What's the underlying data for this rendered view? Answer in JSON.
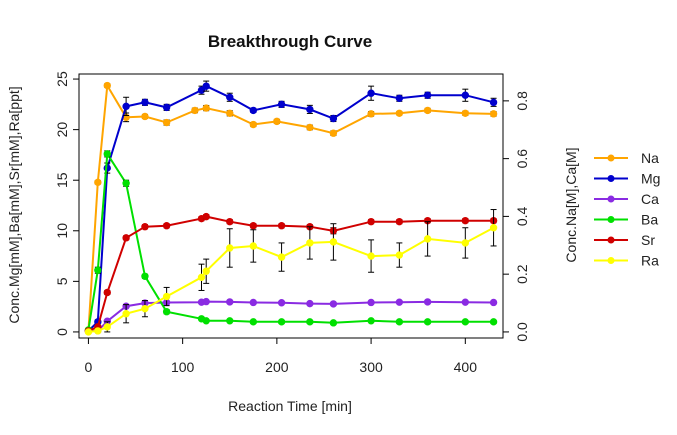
{
  "chart_data": {
    "type": "line",
    "title": "Breakthrough Curve",
    "xlabel": "Reaction Time [min]",
    "ylabel_left": "Conc.Mg[mM],Ba[mM],Sr[mM],Ra[ppt]",
    "ylabel_right": "Conc.Na[M],Ca[M]",
    "xlim": [
      -10,
      440
    ],
    "ylim_left": [
      -0.6,
      25.5
    ],
    "ylim_right": [
      -0.021,
      0.893
    ],
    "xticks": [
      0,
      100,
      200,
      300,
      400
    ],
    "yticks_left": [
      0,
      5,
      10,
      15,
      20,
      25
    ],
    "yticks_right": [
      0.0,
      0.2,
      0.4,
      0.6,
      0.8
    ],
    "yticks_right_labels": [
      "0.0",
      "0.2",
      "0.4",
      "0.6",
      "0.8"
    ],
    "grid": false,
    "legend_position": "right",
    "series": [
      {
        "name": "Na",
        "axis": "right",
        "color": "#FFA500",
        "x": [
          0,
          10,
          20,
          40,
          60,
          83,
          113,
          125,
          150,
          175,
          200,
          235,
          260,
          300,
          330,
          360,
          400,
          430
        ],
        "y": [
          0.002,
          0.518,
          0.853,
          0.743,
          0.746,
          0.725,
          0.767,
          0.775,
          0.757,
          0.718,
          0.729,
          0.708,
          0.688,
          0.755,
          0.757,
          0.767,
          0.757,
          0.755
        ],
        "err": [
          0.002,
          0.006,
          0.006,
          0.015,
          0.007,
          0.009,
          0.008,
          0.009,
          0.009,
          0.007,
          0.007,
          0.008,
          0.008,
          0.008,
          0.006,
          0.007,
          0.007,
          0.008
        ]
      },
      {
        "name": "Mg",
        "axis": "left",
        "color": "#0000CD",
        "x": [
          0,
          10,
          20,
          40,
          60,
          83,
          120,
          125,
          150,
          175,
          205,
          235,
          260,
          300,
          330,
          360,
          400,
          430
        ],
        "y": [
          0.1,
          1.0,
          16.2,
          22.3,
          22.7,
          22.2,
          23.9,
          24.3,
          23.2,
          21.9,
          22.5,
          22.0,
          21.1,
          23.6,
          23.1,
          23.4,
          23.4,
          22.7
        ],
        "err": [
          0.1,
          0.2,
          0.5,
          0.9,
          0.3,
          0.3,
          0.4,
          0.5,
          0.4,
          0.2,
          0.3,
          0.4,
          0.3,
          0.7,
          0.3,
          0.3,
          0.6,
          0.4
        ]
      },
      {
        "name": "Ca",
        "axis": "right",
        "color": "#8A2BE2",
        "x": [
          0,
          10,
          20,
          40,
          60,
          83,
          120,
          125,
          150,
          175,
          205,
          235,
          260,
          300,
          330,
          360,
          400,
          430
        ],
        "y": [
          0.003,
          0.004,
          0.037,
          0.089,
          0.1,
          0.102,
          0.103,
          0.105,
          0.104,
          0.102,
          0.101,
          0.098,
          0.097,
          0.102,
          0.103,
          0.104,
          0.103,
          0.102
        ],
        "err": [
          0.002,
          0.002,
          0.004,
          0.005,
          0.004,
          0.003,
          0.003,
          0.003,
          0.003,
          0.003,
          0.003,
          0.003,
          0.003,
          0.003,
          0.003,
          0.003,
          0.003,
          0.003
        ]
      },
      {
        "name": "Ba",
        "axis": "left",
        "color": "#00E000",
        "x": [
          0,
          10,
          20,
          40,
          60,
          83,
          120,
          125,
          150,
          175,
          205,
          235,
          260,
          300,
          330,
          360,
          400,
          430
        ],
        "y": [
          0.2,
          6.1,
          17.6,
          14.7,
          5.5,
          2.0,
          1.3,
          1.1,
          1.1,
          1.0,
          1.0,
          1.0,
          0.9,
          1.1,
          1.0,
          1.0,
          1.0,
          1.0
        ],
        "err": [
          0.1,
          0.3,
          0.3,
          0.3,
          0.2,
          0.2,
          0.1,
          0.1,
          0.1,
          0.1,
          0.1,
          0.1,
          0.1,
          0.1,
          0.1,
          0.1,
          0.1,
          0.1
        ]
      },
      {
        "name": "Sr",
        "axis": "left",
        "color": "#D00000",
        "x": [
          0,
          10,
          20,
          40,
          60,
          83,
          120,
          125,
          150,
          175,
          205,
          235,
          260,
          300,
          330,
          360,
          400,
          430
        ],
        "y": [
          0.1,
          0.5,
          3.9,
          9.3,
          10.4,
          10.5,
          11.2,
          11.4,
          10.9,
          10.5,
          10.5,
          10.4,
          10.0,
          10.9,
          10.9,
          11.0,
          11.0,
          11.0
        ],
        "err": [
          0.1,
          0.1,
          0.2,
          0.2,
          0.2,
          0.2,
          0.2,
          0.2,
          0.2,
          0.2,
          0.2,
          0.2,
          0.3,
          0.2,
          0.2,
          0.2,
          0.2,
          0.2
        ]
      },
      {
        "name": "Ra",
        "axis": "left",
        "color": "#FFFF00",
        "x": [
          0,
          10,
          20,
          40,
          60,
          83,
          120,
          125,
          150,
          175,
          205,
          235,
          260,
          300,
          330,
          360,
          400,
          430
        ],
        "y": [
          0.0,
          0.1,
          0.5,
          1.8,
          2.3,
          3.5,
          5.4,
          6.0,
          8.3,
          8.5,
          7.4,
          8.8,
          8.9,
          7.5,
          7.6,
          9.2,
          8.8,
          10.3
        ],
        "err": [
          0.1,
          0.1,
          0.5,
          0.9,
          0.8,
          0.9,
          1.3,
          1.2,
          1.9,
          1.6,
          1.4,
          1.6,
          1.8,
          1.6,
          1.2,
          1.7,
          1.5,
          1.8
        ]
      }
    ]
  }
}
